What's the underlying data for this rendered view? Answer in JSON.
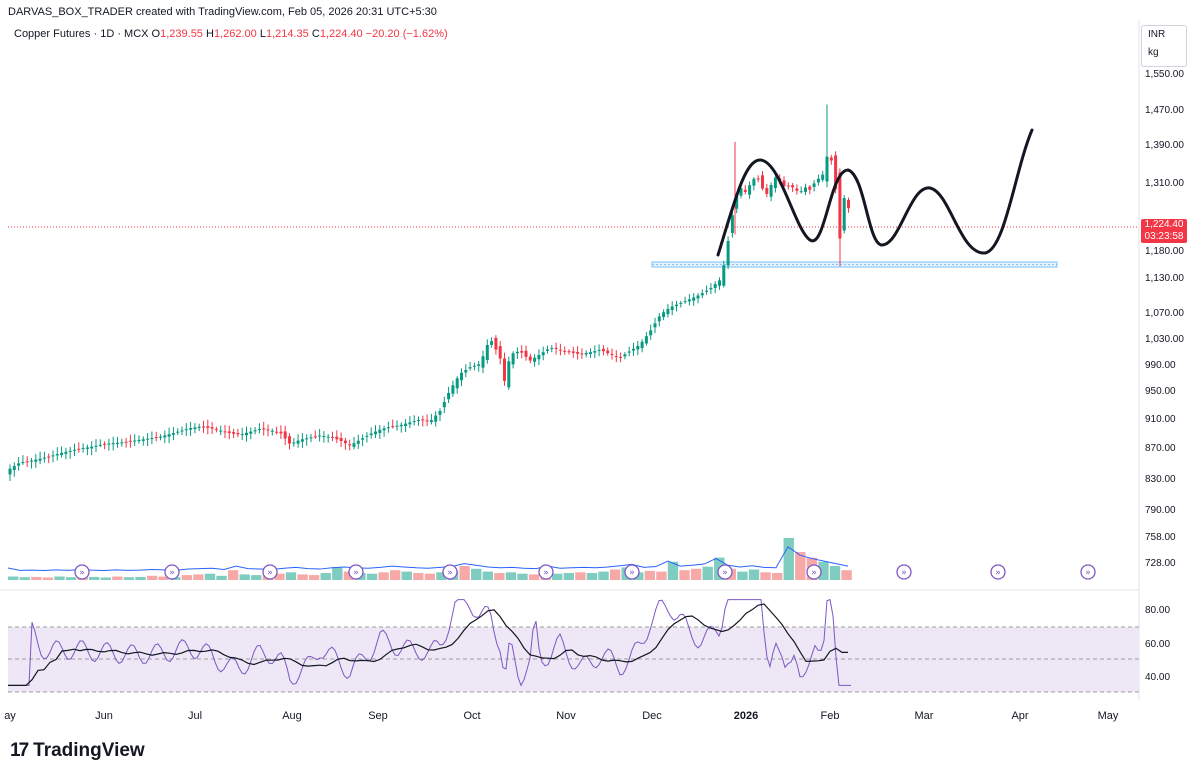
{
  "header": {
    "credit": "DARVAS_BOX_TRADER created with TradingView.com, Feb 05, 2026 20:31 UTC+5:30"
  },
  "legend": {
    "symbol": "Copper Futures · 1D · MCX",
    "o_label": "O",
    "o_value": "1,239.55",
    "h_label": "H",
    "h_value": "1,262.00",
    "l_label": "L",
    "l_value": "1,214.35",
    "c_label": "C",
    "c_value": "1,224.40",
    "change": "−20.20 (−1.62%)"
  },
  "units": {
    "currency": "INR",
    "unit": "kg"
  },
  "last_price": {
    "price": "1,224.40",
    "countdown": "03:23:58",
    "color": "#f23645"
  },
  "footer": {
    "brand": "TradingView"
  },
  "colors": {
    "up": "#089981",
    "down": "#f23645",
    "volume_up": "#7fccc0",
    "volume_down": "#f7a9a7",
    "volume_ma": "#2962ff",
    "rsi_line": "#7e57c2",
    "rsi_ma": "#131722",
    "rsi_band": "#ede7f6",
    "support_zone": "#90caf9",
    "projection": "#131722"
  },
  "chart_data": {
    "type": "candlestick",
    "price_axis": {
      "ticks": [
        "1,550.00",
        "1,470.00",
        "1,390.00",
        "1,310.00",
        "1,180.00",
        "1,130.00",
        "1,070.00",
        "1,030.00",
        "990.00",
        "950.00",
        "910.00",
        "870.00",
        "830.00",
        "790.00",
        "758.00",
        "728.00"
      ],
      "ylim": [
        700,
        1580
      ]
    },
    "rsi_axis": {
      "ticks": [
        "80.00",
        "60.00",
        "40.00"
      ],
      "upper": 70,
      "middle": 50,
      "lower": 30
    },
    "time_axis": [
      "ay",
      "Jun",
      "Jul",
      "Aug",
      "Sep",
      "Oct",
      "Nov",
      "Dec",
      "2026",
      "Feb",
      "Mar",
      "Apr",
      "May"
    ],
    "close_path": [
      [
        0,
        818
      ],
      [
        10,
        842
      ],
      [
        20,
        850
      ],
      [
        30,
        852
      ],
      [
        40,
        855
      ],
      [
        50,
        858
      ],
      [
        60,
        862
      ],
      [
        70,
        865
      ],
      [
        80,
        868
      ],
      [
        90,
        870
      ],
      [
        100,
        873
      ],
      [
        110,
        875
      ],
      [
        120,
        876
      ],
      [
        130,
        878
      ],
      [
        140,
        880
      ],
      [
        150,
        882
      ],
      [
        160,
        884
      ],
      [
        170,
        888
      ],
      [
        180,
        892
      ],
      [
        190,
        896
      ],
      [
        200,
        898
      ],
      [
        210,
        896
      ],
      [
        220,
        893
      ],
      [
        230,
        889
      ],
      [
        240,
        887
      ],
      [
        250,
        891
      ],
      [
        260,
        895
      ],
      [
        270,
        893
      ],
      [
        280,
        890
      ],
      [
        290,
        874
      ],
      [
        300,
        880
      ],
      [
        310,
        883
      ],
      [
        320,
        886
      ],
      [
        330,
        884
      ],
      [
        340,
        879
      ],
      [
        350,
        872
      ],
      [
        360,
        880
      ],
      [
        370,
        888
      ],
      [
        380,
        894
      ],
      [
        390,
        898
      ],
      [
        400,
        900
      ],
      [
        410,
        904
      ],
      [
        420,
        908
      ],
      [
        430,
        905
      ],
      [
        440,
        920
      ],
      [
        450,
        950
      ],
      [
        460,
        975
      ],
      [
        470,
        985
      ],
      [
        480,
        990
      ],
      [
        490,
        1030
      ],
      [
        500,
        1000
      ],
      [
        505,
        960
      ],
      [
        510,
        1005
      ],
      [
        520,
        1010
      ],
      [
        530,
        995
      ],
      [
        540,
        1005
      ],
      [
        550,
        1015
      ],
      [
        560,
        1012
      ],
      [
        570,
        1008
      ],
      [
        580,
        1005
      ],
      [
        590,
        1008
      ],
      [
        600,
        1012
      ],
      [
        610,
        1005
      ],
      [
        620,
        1000
      ],
      [
        630,
        1010
      ],
      [
        640,
        1020
      ],
      [
        650,
        1040
      ],
      [
        660,
        1065
      ],
      [
        670,
        1078
      ],
      [
        680,
        1085
      ],
      [
        690,
        1092
      ],
      [
        700,
        1100
      ],
      [
        710,
        1110
      ],
      [
        720,
        1125
      ],
      [
        725,
        1160
      ],
      [
        730,
        1220
      ],
      [
        735,
        1275
      ],
      [
        740,
        1300
      ],
      [
        745,
        1290
      ],
      [
        750,
        1305
      ],
      [
        755,
        1320
      ],
      [
        760,
        1315
      ],
      [
        765,
        1280
      ],
      [
        770,
        1300
      ],
      [
        775,
        1320
      ],
      [
        780,
        1310
      ],
      [
        785,
        1300
      ],
      [
        790,
        1305
      ],
      [
        795,
        1295
      ],
      [
        800,
        1290
      ],
      [
        805,
        1300
      ],
      [
        810,
        1295
      ],
      [
        815,
        1310
      ],
      [
        820,
        1320
      ],
      [
        825,
        1330
      ],
      [
        828,
        1380
      ],
      [
        832,
        1350
      ],
      [
        836,
        1290
      ],
      [
        840,
        1200
      ],
      [
        844,
        1280
      ],
      [
        848,
        1265
      ],
      [
        852,
        1224
      ]
    ],
    "volume_relative": [
      0.25,
      0.2,
      0.22,
      0.18,
      0.25,
      0.2,
      0.3,
      0.22,
      0.18,
      0.25,
      0.2,
      0.22,
      0.3,
      0.25,
      0.2,
      0.35,
      0.4,
      0.45,
      0.3,
      0.7,
      0.4,
      0.35,
      0.3,
      0.45,
      0.55,
      0.4,
      0.35,
      0.5,
      0.9,
      0.6,
      0.5,
      0.45,
      0.55,
      0.7,
      0.6,
      0.5,
      0.45,
      0.55,
      0.65,
      1.0,
      0.8,
      0.6,
      0.5,
      0.55,
      0.45,
      0.4,
      0.7,
      0.45,
      0.5,
      0.55,
      0.5,
      0.6,
      0.75,
      0.9,
      0.55,
      0.65,
      0.6,
      1.3,
      0.7,
      0.8,
      0.95,
      1.6,
      0.8,
      0.6,
      0.75,
      0.55,
      0.5,
      3.0,
      2.0,
      1.6,
      1.3,
      1.0,
      0.7
    ]
  }
}
